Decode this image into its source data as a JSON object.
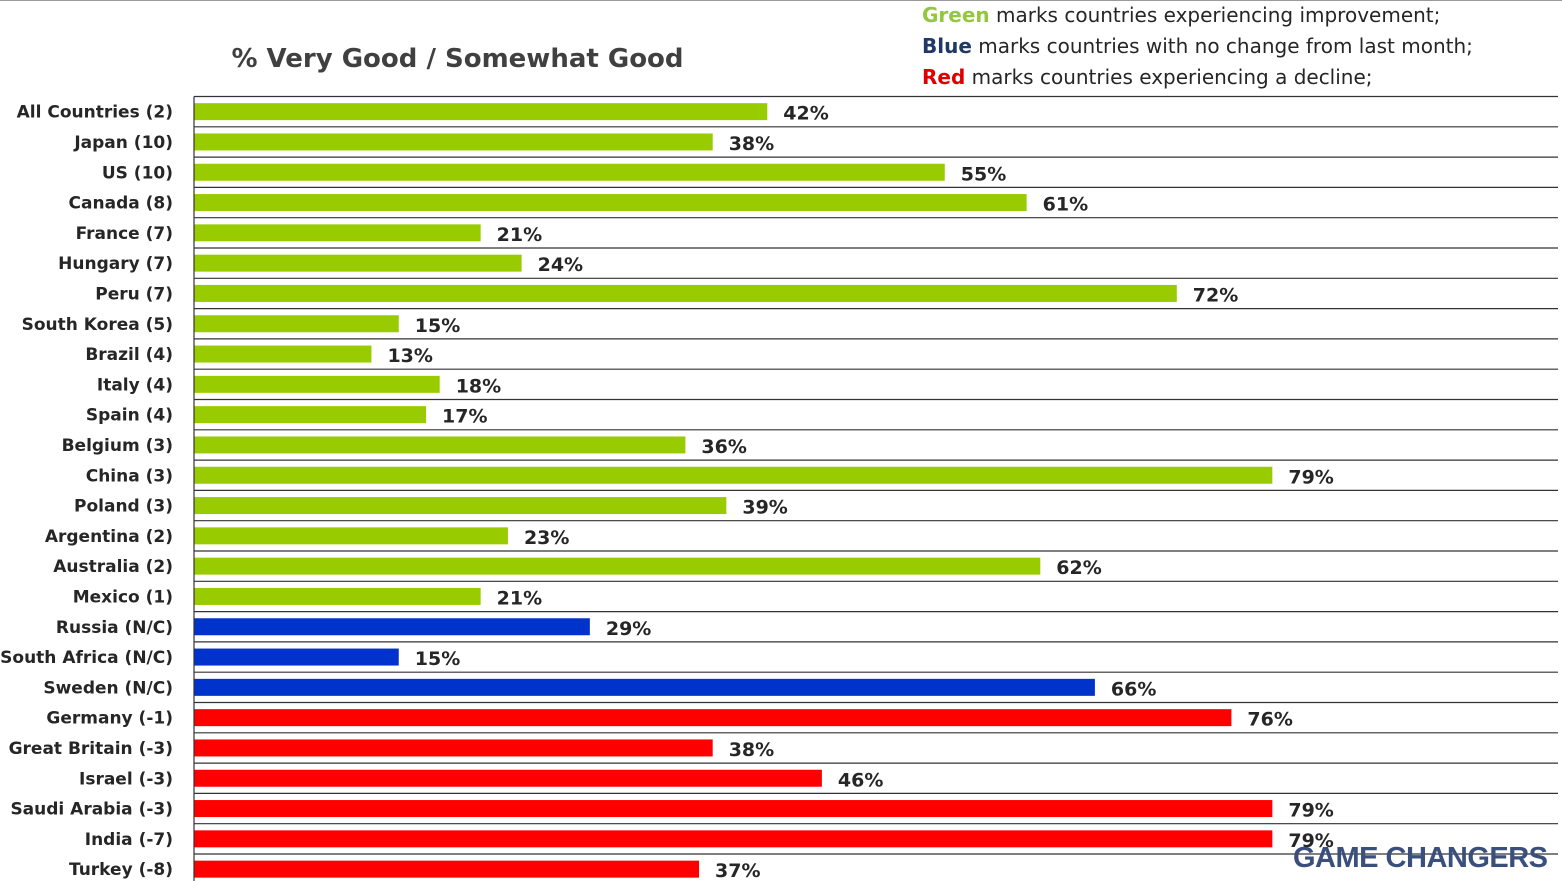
{
  "legend": {
    "green_word": "Green",
    "green_text": " marks countries experiencing improvement;",
    "blue_word": "Blue",
    "blue_text": " marks countries with no change from last month;",
    "red_word": "Red",
    "red_text": " marks countries experiencing a decline;"
  },
  "colors": {
    "improvement": "#99cc00",
    "no_change": "#0033cc",
    "decline": "#ff0000",
    "legend_green": "#92c83e",
    "legend_blue": "#1f3864",
    "legend_red": "#e00000"
  },
  "watermark": "GAME CHANGERS",
  "chart_data": {
    "type": "bar",
    "orientation": "horizontal",
    "title": "% Very Good / Somewhat Good",
    "xlabel": "",
    "ylabel": "",
    "xlim": [
      0,
      100
    ],
    "grid": true,
    "categories": [
      "All Countries (2)",
      "Japan (10)",
      "US (10)",
      "Canada (8)",
      "France (7)",
      "Hungary (7)",
      "Peru (7)",
      "South Korea (5)",
      "Brazil (4)",
      "Italy (4)",
      "Spain (4)",
      "Belgium (3)",
      "China (3)",
      "Poland (3)",
      "Argentina (2)",
      "Australia (2)",
      "Mexico (1)",
      "Russia (N/C)",
      "South Africa (N/C)",
      "Sweden (N/C)",
      "Germany (-1)",
      "Great Britain (-3)",
      "Israel (-3)",
      "Saudi Arabia (-3)",
      "India (-7)",
      "Turkey (-8)"
    ],
    "values": [
      42,
      38,
      55,
      61,
      21,
      24,
      72,
      15,
      13,
      18,
      17,
      36,
      79,
      39,
      23,
      62,
      21,
      29,
      15,
      66,
      76,
      38,
      46,
      79,
      79,
      37
    ],
    "value_labels": [
      "42%",
      "38%",
      "55%",
      "61%",
      "21%",
      "24%",
      "72%",
      "15%",
      "13%",
      "18%",
      "17%",
      "36%",
      "79%",
      "39%",
      "23%",
      "62%",
      "21%",
      "29%",
      "15%",
      "66%",
      "76%",
      "38%",
      "46%",
      "79%",
      "79%",
      "37%"
    ],
    "status": [
      "improvement",
      "improvement",
      "improvement",
      "improvement",
      "improvement",
      "improvement",
      "improvement",
      "improvement",
      "improvement",
      "improvement",
      "improvement",
      "improvement",
      "improvement",
      "improvement",
      "improvement",
      "improvement",
      "improvement",
      "no_change",
      "no_change",
      "no_change",
      "decline",
      "decline",
      "decline",
      "decline",
      "decline",
      "decline"
    ]
  }
}
